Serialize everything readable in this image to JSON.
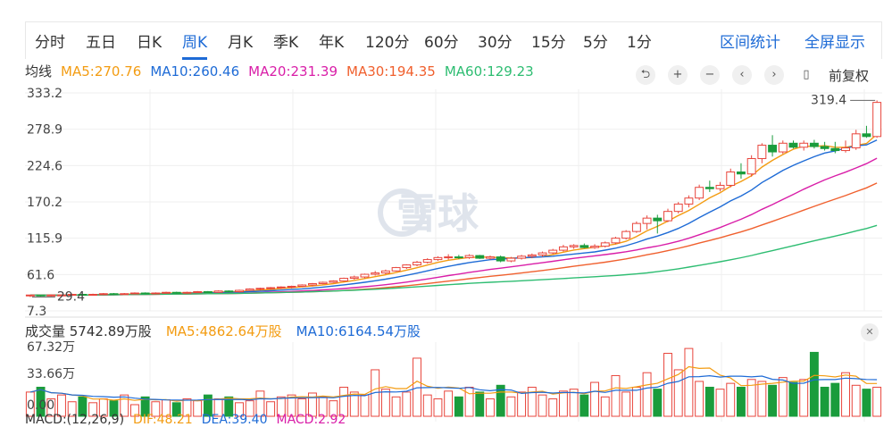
{
  "tabs": {
    "items": [
      "分时",
      "五日",
      "日K",
      "周K",
      "月K",
      "季K",
      "年K",
      "120分",
      "60分",
      "30分",
      "15分",
      "5分",
      "1分"
    ],
    "active": "周K",
    "right": [
      "区间统计",
      "全屏显示"
    ]
  },
  "ma_legend": {
    "label": "均线",
    "items": [
      {
        "text": "MA5:270.76",
        "color": "#f39c12"
      },
      {
        "text": "MA10:260.46",
        "color": "#1e6bd6"
      },
      {
        "text": "MA20:231.39",
        "color": "#d91ea8"
      },
      {
        "text": "MA30:194.35",
        "color": "#f0602e"
      },
      {
        "text": "MA60:129.23",
        "color": "#2ebd72"
      }
    ]
  },
  "toolbar": {
    "icons": [
      "undo-icon",
      "zoom-in-icon",
      "zoom-out-icon",
      "chevron-left-icon",
      "chevron-right-icon",
      "candle-icon"
    ],
    "adjust": "前复权"
  },
  "watermark": "雪球",
  "volume_legend": {
    "label": "成交量 5742.89万股",
    "items": [
      {
        "text": "MA5:4862.64万股",
        "color": "#f39c12"
      },
      {
        "text": "MA10:6164.54万股",
        "color": "#1e6bd6"
      }
    ]
  },
  "macd_legend": {
    "items": [
      {
        "text": "MACD:(12,26,9)",
        "color": "#333333"
      },
      {
        "text": "DIF:48.21",
        "color": "#f39c12"
      },
      {
        "text": "DEA:39.40",
        "color": "#1e6bd6"
      },
      {
        "text": "MACD:2.92",
        "color": "#d91ea8"
      }
    ]
  },
  "colors": {
    "up": "#e8453c",
    "down": "#1a9c3c",
    "grid": "#efefef"
  },
  "chart_data": [
    {
      "type": "candlestick",
      "y_ticks": [
        "333.2",
        "278.9",
        "224.6",
        "170.2",
        "115.9",
        "61.6",
        "7.3"
      ],
      "ylim": [
        7.3,
        333.2
      ],
      "annotations": {
        "max": "319.4",
        "min": "29.4"
      },
      "candles": [
        [
          30,
          31,
          28,
          31
        ],
        [
          31,
          31,
          29,
          30
        ],
        [
          30,
          32,
          29,
          31
        ],
        [
          31,
          32,
          30,
          31
        ],
        [
          31,
          33,
          30,
          32
        ],
        [
          32,
          33,
          30,
          31
        ],
        [
          31,
          33,
          30,
          32
        ],
        [
          32,
          34,
          31,
          33
        ],
        [
          33,
          34,
          31,
          32
        ],
        [
          32,
          34,
          31,
          33
        ],
        [
          33,
          35,
          32,
          34
        ],
        [
          34,
          35,
          32,
          33
        ],
        [
          33,
          35,
          32,
          34
        ],
        [
          34,
          36,
          33,
          35
        ],
        [
          35,
          36,
          33,
          34
        ],
        [
          34,
          36,
          33,
          35
        ],
        [
          35,
          37,
          34,
          36
        ],
        [
          36,
          37,
          34,
          35
        ],
        [
          35,
          38,
          34,
          37
        ],
        [
          37,
          38,
          35,
          36
        ],
        [
          36,
          39,
          35,
          38
        ],
        [
          38,
          41,
          37,
          40
        ],
        [
          40,
          42,
          38,
          41
        ],
        [
          41,
          43,
          39,
          42
        ],
        [
          42,
          44,
          40,
          43
        ],
        [
          43,
          45,
          41,
          44
        ],
        [
          44,
          47,
          43,
          46
        ],
        [
          46,
          49,
          44,
          48
        ],
        [
          48,
          51,
          47,
          50
        ],
        [
          50,
          53,
          49,
          52
        ],
        [
          52,
          57,
          51,
          56
        ],
        [
          56,
          60,
          54,
          58
        ],
        [
          58,
          63,
          56,
          62
        ],
        [
          62,
          67,
          60,
          64
        ],
        [
          64,
          69,
          62,
          67
        ],
        [
          67,
          73,
          66,
          72
        ],
        [
          72,
          77,
          70,
          76
        ],
        [
          76,
          82,
          74,
          80
        ],
        [
          80,
          86,
          78,
          84
        ],
        [
          84,
          89,
          82,
          87
        ],
        [
          87,
          92,
          84,
          88
        ],
        [
          88,
          91,
          85,
          87
        ],
        [
          87,
          92,
          85,
          90
        ],
        [
          90,
          91,
          85,
          86
        ],
        [
          86,
          90,
          84,
          88
        ],
        [
          88,
          90,
          80,
          82
        ],
        [
          82,
          88,
          80,
          86
        ],
        [
          86,
          91,
          84,
          89
        ],
        [
          89,
          93,
          86,
          91
        ],
        [
          91,
          96,
          88,
          94
        ],
        [
          94,
          100,
          92,
          98
        ],
        [
          98,
          106,
          96,
          103
        ],
        [
          103,
          107,
          100,
          105
        ],
        [
          105,
          108,
          101,
          102
        ],
        [
          102,
          107,
          100,
          104
        ],
        [
          104,
          111,
          102,
          109
        ],
        [
          109,
          118,
          107,
          116
        ],
        [
          116,
          128,
          114,
          126
        ],
        [
          126,
          141,
          124,
          138
        ],
        [
          138,
          150,
          129,
          146
        ],
        [
          146,
          151,
          123,
          142
        ],
        [
          142,
          160,
          140,
          156
        ],
        [
          156,
          170,
          153,
          167
        ],
        [
          167,
          180,
          162,
          176
        ],
        [
          176,
          196,
          173,
          192
        ],
        [
          192,
          202,
          185,
          190
        ],
        [
          190,
          200,
          186,
          195
        ],
        [
          195,
          220,
          192,
          215
        ],
        [
          215,
          228,
          205,
          212
        ],
        [
          212,
          240,
          208,
          235
        ],
        [
          235,
          258,
          228,
          255
        ],
        [
          255,
          270,
          238,
          245
        ],
        [
          245,
          262,
          242,
          258
        ],
        [
          258,
          262,
          250,
          252
        ],
        [
          252,
          262,
          247,
          258
        ],
        [
          258,
          263,
          250,
          253
        ],
        [
          253,
          260,
          247,
          250
        ],
        [
          250,
          260,
          243,
          247
        ],
        [
          247,
          262,
          244,
          251
        ],
        [
          251,
          278,
          248,
          272
        ],
        [
          272,
          284,
          266,
          268
        ],
        [
          268,
          322,
          266,
          319
        ]
      ]
    },
    {
      "type": "volume",
      "y_ticks": [
        "67.32万",
        "33.66万",
        "0.00"
      ],
      "ylim": [
        0,
        67.32
      ],
      "values": [
        25,
        30,
        18,
        22,
        15,
        20,
        14,
        18,
        16,
        22,
        12,
        20,
        15,
        17,
        14,
        18,
        16,
        22,
        18,
        20,
        14,
        16,
        26,
        15,
        20,
        22,
        18,
        24,
        20,
        16,
        30,
        25,
        22,
        48,
        28,
        20,
        25,
        60,
        22,
        18,
        26,
        20,
        30,
        25,
        18,
        32,
        20,
        25,
        30,
        22,
        18,
        26,
        28,
        22,
        35,
        20,
        42,
        25,
        30,
        45,
        28,
        65,
        48,
        70,
        36,
        30,
        28,
        34,
        30,
        38,
        36,
        32,
        40,
        35,
        38,
        66,
        30,
        34,
        45,
        32,
        28,
        30
      ]
    }
  ]
}
